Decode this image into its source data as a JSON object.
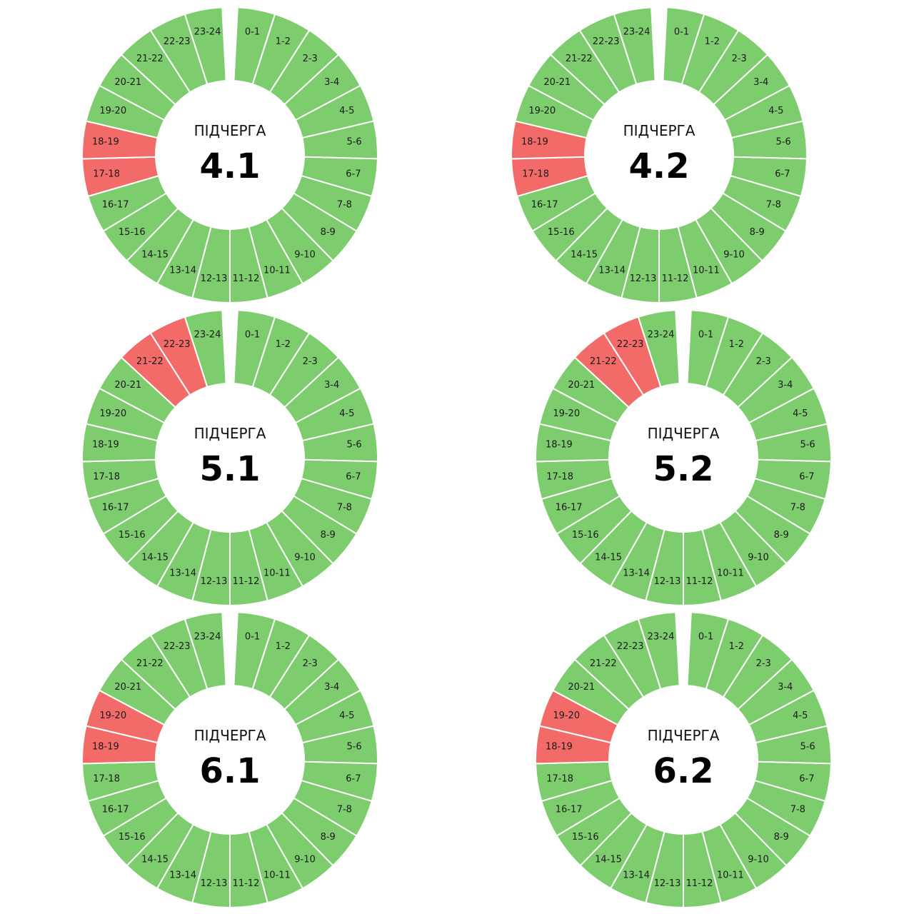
{
  "colors": {
    "on": "#7dcc6d",
    "off": "#f26b69",
    "background": "#ffffff",
    "separator": "#ffffff"
  },
  "hour_labels": [
    "0-1",
    "1-2",
    "2-3",
    "3-4",
    "4-5",
    "5-6",
    "6-7",
    "7-8",
    "8-9",
    "9-10",
    "10-11",
    "11-12",
    "12-13",
    "13-14",
    "14-15",
    "15-16",
    "16-17",
    "17-18",
    "18-19",
    "19-20",
    "20-21",
    "21-22",
    "22-23",
    "23-24"
  ],
  "chart_data": [
    {
      "type": "donut",
      "caption": "ПІДЧЕРГА",
      "group": "4.1",
      "categories": [
        "0-1",
        "1-2",
        "2-3",
        "3-4",
        "4-5",
        "5-6",
        "6-7",
        "7-8",
        "8-9",
        "9-10",
        "10-11",
        "11-12",
        "12-13",
        "13-14",
        "14-15",
        "15-16",
        "16-17",
        "17-18",
        "18-19",
        "19-20",
        "20-21",
        "21-22",
        "22-23",
        "23-24"
      ],
      "status": [
        "on",
        "on",
        "on",
        "on",
        "on",
        "on",
        "on",
        "on",
        "on",
        "on",
        "on",
        "on",
        "on",
        "on",
        "on",
        "on",
        "on",
        "off",
        "off",
        "on",
        "on",
        "on",
        "on",
        "on"
      ]
    },
    {
      "type": "donut",
      "caption": "ПІДЧЕРГА",
      "group": "4.2",
      "categories": [
        "0-1",
        "1-2",
        "2-3",
        "3-4",
        "4-5",
        "5-6",
        "6-7",
        "7-8",
        "8-9",
        "9-10",
        "10-11",
        "11-12",
        "12-13",
        "13-14",
        "14-15",
        "15-16",
        "16-17",
        "17-18",
        "18-19",
        "19-20",
        "20-21",
        "21-22",
        "22-23",
        "23-24"
      ],
      "status": [
        "on",
        "on",
        "on",
        "on",
        "on",
        "on",
        "on",
        "on",
        "on",
        "on",
        "on",
        "on",
        "on",
        "on",
        "on",
        "on",
        "on",
        "off",
        "off",
        "on",
        "on",
        "on",
        "on",
        "on"
      ]
    },
    {
      "type": "donut",
      "caption": "ПІДЧЕРГА",
      "group": "5.1",
      "categories": [
        "0-1",
        "1-2",
        "2-3",
        "3-4",
        "4-5",
        "5-6",
        "6-7",
        "7-8",
        "8-9",
        "9-10",
        "10-11",
        "11-12",
        "12-13",
        "13-14",
        "14-15",
        "15-16",
        "16-17",
        "17-18",
        "18-19",
        "19-20",
        "20-21",
        "21-22",
        "22-23",
        "23-24"
      ],
      "status": [
        "on",
        "on",
        "on",
        "on",
        "on",
        "on",
        "on",
        "on",
        "on",
        "on",
        "on",
        "on",
        "on",
        "on",
        "on",
        "on",
        "on",
        "on",
        "on",
        "on",
        "on",
        "off",
        "off",
        "on"
      ]
    },
    {
      "type": "donut",
      "caption": "ПІДЧЕРГА",
      "group": "5.2",
      "categories": [
        "0-1",
        "1-2",
        "2-3",
        "3-4",
        "4-5",
        "5-6",
        "6-7",
        "7-8",
        "8-9",
        "9-10",
        "10-11",
        "11-12",
        "12-13",
        "13-14",
        "14-15",
        "15-16",
        "16-17",
        "17-18",
        "18-19",
        "19-20",
        "20-21",
        "21-22",
        "22-23",
        "23-24"
      ],
      "status": [
        "on",
        "on",
        "on",
        "on",
        "on",
        "on",
        "on",
        "on",
        "on",
        "on",
        "on",
        "on",
        "on",
        "on",
        "on",
        "on",
        "on",
        "on",
        "on",
        "on",
        "on",
        "off",
        "off",
        "on"
      ]
    },
    {
      "type": "donut",
      "caption": "ПІДЧЕРГА",
      "group": "6.1",
      "categories": [
        "0-1",
        "1-2",
        "2-3",
        "3-4",
        "4-5",
        "5-6",
        "6-7",
        "7-8",
        "8-9",
        "9-10",
        "10-11",
        "11-12",
        "12-13",
        "13-14",
        "14-15",
        "15-16",
        "16-17",
        "17-18",
        "18-19",
        "19-20",
        "20-21",
        "21-22",
        "22-23",
        "23-24"
      ],
      "status": [
        "on",
        "on",
        "on",
        "on",
        "on",
        "on",
        "on",
        "on",
        "on",
        "on",
        "on",
        "on",
        "on",
        "on",
        "on",
        "on",
        "on",
        "on",
        "off",
        "off",
        "on",
        "on",
        "on",
        "on"
      ]
    },
    {
      "type": "donut",
      "caption": "ПІДЧЕРГА",
      "group": "6.2",
      "categories": [
        "0-1",
        "1-2",
        "2-3",
        "3-4",
        "4-5",
        "5-6",
        "6-7",
        "7-8",
        "8-9",
        "9-10",
        "10-11",
        "11-12",
        "12-13",
        "13-14",
        "14-15",
        "15-16",
        "16-17",
        "17-18",
        "18-19",
        "19-20",
        "20-21",
        "21-22",
        "22-23",
        "23-24"
      ],
      "status": [
        "on",
        "on",
        "on",
        "on",
        "on",
        "on",
        "on",
        "on",
        "on",
        "on",
        "on",
        "on",
        "on",
        "on",
        "on",
        "on",
        "on",
        "on",
        "off",
        "off",
        "on",
        "on",
        "on",
        "on"
      ]
    }
  ]
}
